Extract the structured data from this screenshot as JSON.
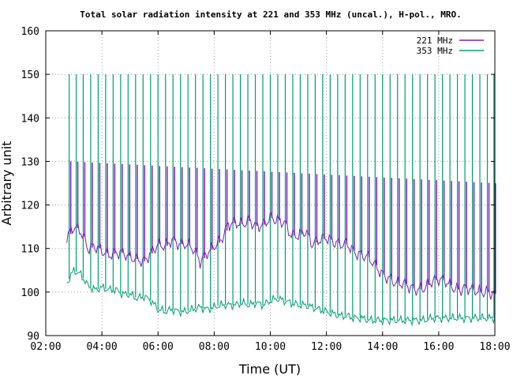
{
  "chart_data": {
    "type": "line",
    "title": "Total solar radiation intensity at 221 and 353 MHz (uncal.), H-pol., MRO.",
    "xlabel": "Time (UT)",
    "ylabel": "Arbitrary unit",
    "xlim": [
      "02:00",
      "18:00"
    ],
    "ylim": [
      90,
      160
    ],
    "x_ticks": [
      "02:00",
      "04:00",
      "06:00",
      "08:00",
      "10:00",
      "12:00",
      "14:00",
      "16:00",
      "18:00"
    ],
    "y_ticks": [
      90,
      100,
      110,
      120,
      130,
      140,
      150,
      160
    ],
    "grid": true,
    "legend_position": "top-right",
    "series": [
      {
        "name": "221 MHz",
        "color": "#7a1fbf",
        "x": [
          "02:45",
          "03:00",
          "03:15",
          "03:30",
          "03:45",
          "04:00",
          "04:15",
          "04:30",
          "04:45",
          "05:00",
          "05:15",
          "05:30",
          "05:45",
          "06:00",
          "06:15",
          "06:30",
          "06:45",
          "07:00",
          "07:15",
          "07:30",
          "07:45",
          "08:00",
          "08:15",
          "08:30",
          "08:45",
          "09:00",
          "09:15",
          "09:30",
          "09:45",
          "10:00",
          "10:15",
          "10:30",
          "10:45",
          "11:00",
          "11:15",
          "11:30",
          "11:45",
          "12:00",
          "12:15",
          "12:30",
          "12:45",
          "13:00",
          "13:15",
          "13:30",
          "13:45",
          "14:00",
          "14:15",
          "14:30",
          "14:45",
          "15:00",
          "15:15",
          "15:30",
          "15:45",
          "16:00",
          "16:15",
          "16:30",
          "16:45",
          "17:00",
          "17:15",
          "17:30",
          "17:45",
          "18:00"
        ],
        "values": [
          112.5,
          115,
          114,
          110,
          110.5,
          109.5,
          108.5,
          109,
          109,
          108,
          107.5,
          107,
          109,
          111,
          110.5,
          112,
          111,
          111,
          110,
          107,
          109,
          110.5,
          112,
          115.5,
          116,
          115.5,
          116.5,
          115,
          115.5,
          117,
          116.5,
          116,
          113,
          113,
          114,
          111,
          112,
          112.5,
          111.5,
          111,
          111,
          109,
          108.5,
          108,
          106,
          104,
          103,
          102,
          102,
          101,
          100.5,
          101,
          102.5,
          103,
          102.5,
          101,
          100.5,
          101,
          100.5,
          100,
          100,
          99.5
        ]
      },
      {
        "name": "353 MHz",
        "color": "#009e73",
        "x": [
          "02:45",
          "03:00",
          "03:15",
          "03:30",
          "03:45",
          "04:00",
          "04:15",
          "04:30",
          "04:45",
          "05:00",
          "05:15",
          "05:30",
          "05:45",
          "06:00",
          "06:15",
          "06:30",
          "06:45",
          "07:00",
          "07:15",
          "07:30",
          "07:45",
          "08:00",
          "08:15",
          "08:30",
          "08:45",
          "09:00",
          "09:15",
          "09:30",
          "09:45",
          "10:00",
          "10:15",
          "10:30",
          "10:45",
          "11:00",
          "11:15",
          "11:30",
          "11:45",
          "12:00",
          "12:15",
          "12:30",
          "12:45",
          "13:00",
          "13:15",
          "13:30",
          "13:45",
          "14:00",
          "14:15",
          "14:30",
          "14:45",
          "15:00",
          "15:15",
          "15:30",
          "15:45",
          "16:00",
          "16:15",
          "16:30",
          "16:45",
          "17:00",
          "17:15",
          "17:30",
          "17:45",
          "18:00"
        ],
        "values": [
          102,
          105,
          104,
          101.5,
          100.5,
          101,
          100.5,
          100.5,
          99.5,
          99.5,
          98.5,
          99,
          98,
          96,
          95.5,
          96,
          95.5,
          95.5,
          96,
          96.5,
          96,
          96.5,
          97,
          97,
          97,
          97.5,
          97,
          97.5,
          97,
          98,
          98.5,
          98,
          97.5,
          97,
          97,
          96.5,
          96,
          95.5,
          95,
          94.5,
          94.5,
          94,
          94,
          93.5,
          93.5,
          93.5,
          93.5,
          93.5,
          93.5,
          93.5,
          93.5,
          93.5,
          94,
          94,
          94,
          94,
          94,
          94,
          94,
          94,
          94,
          94
        ]
      }
    ],
    "spikes_353MHz": {
      "peak": 150,
      "times": [
        "02:50",
        "03:05",
        "03:20",
        "03:36",
        "03:52",
        "04:08",
        "04:24",
        "04:40",
        "04:56",
        "05:12",
        "05:28",
        "05:44",
        "06:00",
        "06:16",
        "06:32",
        "06:48",
        "07:04",
        "07:20",
        "07:36",
        "07:52",
        "08:08",
        "08:24",
        "08:40",
        "08:56",
        "09:12",
        "09:28",
        "09:44",
        "10:00",
        "10:16",
        "10:32",
        "10:48",
        "11:04",
        "11:20",
        "11:36",
        "11:52",
        "12:08",
        "12:24",
        "12:40",
        "12:56",
        "13:12",
        "13:28",
        "13:44",
        "14:00",
        "14:16",
        "14:32",
        "14:48",
        "15:04",
        "15:20",
        "15:36",
        "15:52",
        "16:08",
        "16:24",
        "16:40",
        "16:56",
        "17:12",
        "17:28",
        "17:44",
        "17:58"
      ]
    },
    "spikes_221MHz": {
      "level_start": 130,
      "level_end": 125
    }
  }
}
